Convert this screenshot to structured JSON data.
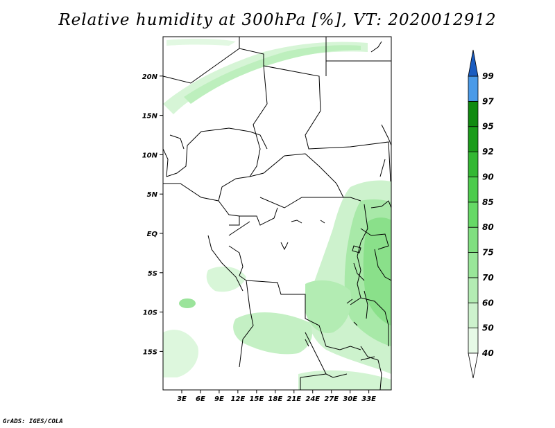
{
  "title": "Relative humidity at 300hPa [%], VT: 2020012912",
  "credit": "GrADS: IGES/COLA",
  "map": {
    "lat_ticks": [
      "20N",
      "15N",
      "10N",
      "5N",
      "EQ",
      "5S",
      "10S",
      "15S"
    ],
    "lat_values": [
      20,
      15,
      10,
      5,
      0,
      -5,
      -10,
      -15
    ],
    "lon_ticks": [
      "3E",
      "6E",
      "9E",
      "12E",
      "15E",
      "18E",
      "21E",
      "24E",
      "27E",
      "30E",
      "33E"
    ],
    "lon_values": [
      3,
      6,
      9,
      12,
      15,
      18,
      21,
      24,
      27,
      30,
      33
    ]
  },
  "colorbar": {
    "labels": [
      "40",
      "50",
      "60",
      "70",
      "75",
      "80",
      "85",
      "90",
      "92",
      "95",
      "97",
      "99"
    ],
    "colors": [
      "#ffffff",
      "#e6f9e6",
      "#cdf2cd",
      "#b3ecb3",
      "#99e699",
      "#80df80",
      "#66d966",
      "#4dcc4d",
      "#33b833",
      "#1a9c1a",
      "#108a10",
      "#4a9ae8",
      "#2a78d8",
      "#1a5cc0"
    ]
  }
}
